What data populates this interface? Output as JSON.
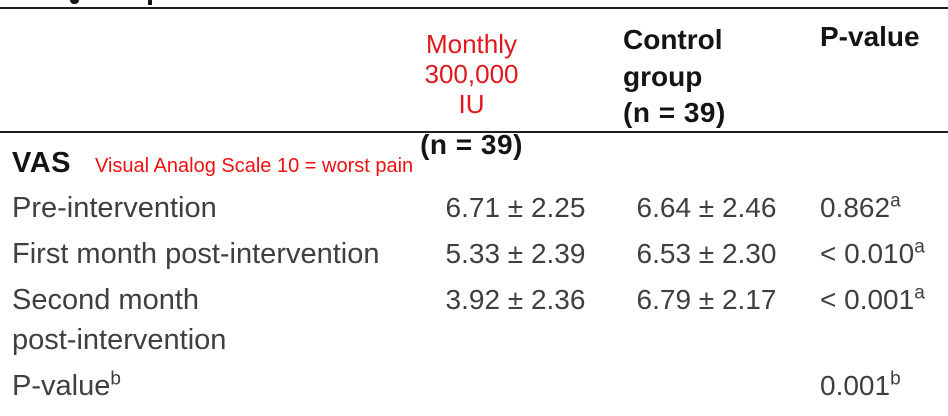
{
  "colors": {
    "background": "#ffffff",
    "rule": "#1c1c1c",
    "body_text": "#3f3f3f",
    "bold_text": "#141414",
    "red_header": "#e0181d",
    "red_note": "#ee1111"
  },
  "table": {
    "header": {
      "intervention": {
        "line1": "Monthly",
        "line2": "300,000 IU",
        "n_label": "(n = 39)"
      },
      "control": {
        "line1": "Control",
        "line2": "group",
        "n_label": "(n = 39)"
      },
      "pvalue": {
        "label": "P-value"
      }
    },
    "section": {
      "title": "VAS",
      "note": "Visual Analog Scale 10 = worst pain"
    },
    "rows": [
      {
        "label": "Pre-intervention",
        "intervention": "6.71 ± 2.25",
        "control": "6.64 ± 2.46",
        "pvalue": "0.862",
        "pvalue_sup": "a"
      },
      {
        "label": "First month post-intervention",
        "intervention": "5.33 ± 2.39",
        "control": "6.53 ± 2.30",
        "pvalue": "< 0.010",
        "pvalue_sup": "a"
      },
      {
        "label": "Second month",
        "label2": "post-intervention",
        "intervention": "3.92 ± 2.36",
        "control": "6.79 ± 2.17",
        "pvalue": "< 0.001",
        "pvalue_sup": "a"
      },
      {
        "label": "P-value",
        "label_sup": "b",
        "intervention": "",
        "control": "",
        "pvalue": "0.001",
        "pvalue_sup": "b"
      }
    ]
  }
}
